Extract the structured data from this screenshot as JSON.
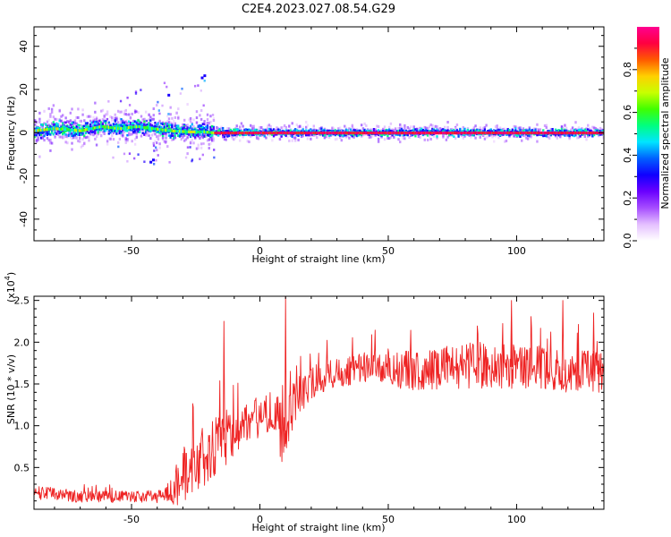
{
  "title": "C2E4.2023.027.08.54.G29",
  "chart_data": [
    {
      "type": "heatmap",
      "xlabel": "Height of straight line (km)",
      "ylabel": "Frequency (Hz)",
      "xlim": [
        -88,
        134
      ],
      "ylim": [
        -50,
        49
      ],
      "x_ticks": [
        -50,
        0,
        50,
        100
      ],
      "y_ticks": [
        -40,
        -20,
        0,
        20,
        40
      ],
      "colorbar": {
        "label": "Normalized spectral amplitude",
        "range": [
          0.0,
          1.0
        ],
        "ticks": [
          "0.0",
          "0.2",
          "0.4",
          "0.6",
          "0.8"
        ],
        "colors": [
          "#ffffff",
          "#e4bfff",
          "#a64dff",
          "#6a00ff",
          "#1000ff",
          "#0060ff",
          "#00e5ff",
          "#00ff80",
          "#40ff00",
          "#c8ff00",
          "#ffd000",
          "#ff5a00",
          "#ff0040",
          "#ff0090"
        ]
      },
      "ridge_segments": [
        {
          "x": [
            -88,
            -80,
            -70,
            -62,
            -55,
            -48,
            -42,
            -35,
            -28,
            -22,
            -18
          ],
          "y": [
            1,
            2,
            1,
            3,
            2,
            3,
            2,
            1,
            0.5,
            0.5,
            0
          ]
        },
        {
          "x": [
            -18,
            134
          ],
          "y": [
            0,
            0
          ]
        }
      ],
      "notes_visible": [
        "spread of energy from -88 to -18 km",
        "scattered points up to about 26 Hz near -23 km",
        "scattered points down to about -13 Hz near -43 km"
      ]
    },
    {
      "type": "line",
      "xlabel": "Height of straight line (km)",
      "ylabel": "SNR (10 * v/v)",
      "yscale_label": "(x10",
      "yscale_exponent": "4",
      "xlim": [
        -88,
        134
      ],
      "ylim": [
        0,
        2.55
      ],
      "x_ticks": [
        -50,
        0,
        50,
        100
      ],
      "y_ticks": [
        "0.5",
        "1.0",
        "1.5",
        "2.0",
        "2.5"
      ],
      "series": [
        {
          "color": "#ee2222",
          "x": [
            -88,
            -80,
            -70,
            -60,
            -50,
            -40,
            -35,
            -30,
            -25,
            -20,
            -15,
            -10,
            -5,
            0,
            5,
            8,
            10,
            12,
            15,
            20,
            25,
            30,
            40,
            50,
            60,
            70,
            80,
            90,
            100,
            110,
            120,
            130,
            134
          ],
          "y": [
            0.2,
            0.18,
            0.15,
            0.15,
            0.15,
            0.15,
            0.2,
            0.4,
            0.55,
            0.65,
            0.8,
            0.95,
            1.05,
            1.1,
            1.2,
            0.95,
            0.75,
            1.2,
            1.35,
            1.5,
            1.6,
            1.65,
            1.7,
            1.7,
            1.65,
            1.7,
            1.72,
            1.72,
            1.7,
            1.7,
            1.65,
            1.65,
            1.65
          ],
          "amplitude": [
            0.08,
            0.08,
            0.07,
            0.07,
            0.07,
            0.08,
            0.15,
            0.35,
            0.4,
            0.4,
            0.35,
            0.3,
            0.25,
            0.25,
            0.25,
            0.35,
            0.3,
            0.3,
            0.25,
            0.2,
            0.2,
            0.2,
            0.2,
            0.22,
            0.24,
            0.26,
            0.28,
            0.28,
            0.28,
            0.27,
            0.26,
            0.25,
            0.25
          ]
        }
      ],
      "spikes": [
        {
          "x": -14,
          "y": 2.25
        },
        {
          "x": 10,
          "y": 2.55
        },
        {
          "x": 98,
          "y": 2.5
        },
        {
          "x": 118,
          "y": 2.5
        },
        {
          "x": 130,
          "y": 2.35
        }
      ]
    }
  ]
}
